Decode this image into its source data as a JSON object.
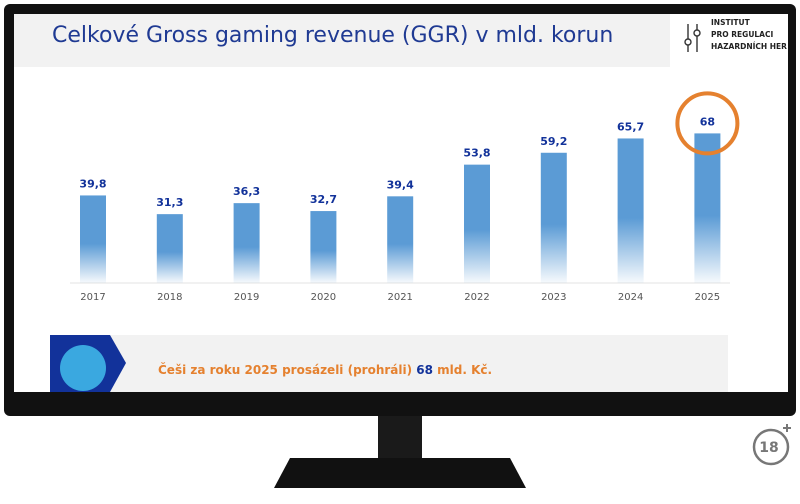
{
  "chart_data": {
    "type": "bar",
    "title": "Celkové Gross gaming revenue (GGR) v mld. korun",
    "categories": [
      "2017",
      "2018",
      "2019",
      "2020",
      "2021",
      "2022",
      "2023",
      "2024",
      "2025"
    ],
    "values": [
      39.8,
      31.3,
      36.3,
      32.7,
      39.4,
      53.8,
      59.2,
      65.7,
      68
    ],
    "value_labels": [
      "39,8",
      "31,3",
      "36,3",
      "32,7",
      "39,4",
      "53,8",
      "59,2",
      "65,7",
      "68"
    ],
    "color": "#5b9bd5",
    "highlight_color": "#e5812f"
  },
  "logo": {
    "lines": [
      "INSTITUT",
      "PRO REGULACI",
      "HAZARDNÍCH HER"
    ]
  },
  "banner": {
    "text_before": "Češi za roku 2025 prosázeli (prohráli) ",
    "highlight": "68",
    "text_after": " mld. Kč."
  },
  "badge": {
    "label": "18"
  }
}
